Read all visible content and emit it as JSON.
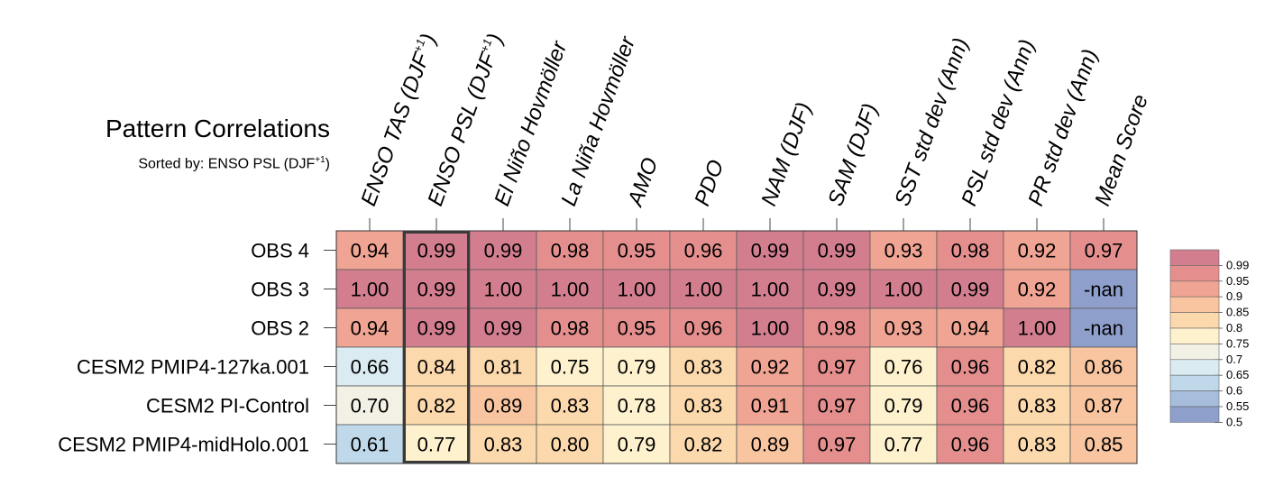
{
  "chart_data": {
    "type": "heatmap",
    "title": "Pattern Correlations",
    "subtitle_prefix": "Sorted by: ENSO PSL (DJF",
    "subtitle_sup": "+1",
    "subtitle_suffix": ")",
    "columns": [
      {
        "label": "ENSO TAS (DJF",
        "sup": "+1",
        "suffix": ")"
      },
      {
        "label": "ENSO PSL (DJF",
        "sup": "+1",
        "suffix": ")"
      },
      {
        "label": "El Niño Hovmöller"
      },
      {
        "label": "La Niña Hovmöller"
      },
      {
        "label": "AMO"
      },
      {
        "label": "PDO"
      },
      {
        "label": "NAM (DJF)"
      },
      {
        "label": "SAM (DJF)"
      },
      {
        "label": "SST std dev (Ann)"
      },
      {
        "label": "PSL std dev (Ann)"
      },
      {
        "label": "PR std dev (Ann)"
      },
      {
        "label": "Mean Score"
      }
    ],
    "rows": [
      "OBS 4",
      "OBS 3",
      "OBS 2",
      "CESM2 PMIP4-127ka.001",
      "CESM2 PI-Control",
      "CESM2 PMIP4-midHolo.001"
    ],
    "values": [
      [
        "0.94",
        "0.99",
        "0.99",
        "0.98",
        "0.95",
        "0.96",
        "0.99",
        "0.99",
        "0.93",
        "0.98",
        "0.92",
        "0.97"
      ],
      [
        "1.00",
        "0.99",
        "1.00",
        "1.00",
        "1.00",
        "1.00",
        "1.00",
        "0.99",
        "1.00",
        "0.99",
        "0.92",
        "-nan"
      ],
      [
        "0.94",
        "0.99",
        "0.99",
        "0.98",
        "0.95",
        "0.96",
        "1.00",
        "0.98",
        "0.93",
        "0.94",
        "1.00",
        "-nan"
      ],
      [
        "0.66",
        "0.84",
        "0.81",
        "0.75",
        "0.79",
        "0.83",
        "0.92",
        "0.97",
        "0.76",
        "0.96",
        "0.82",
        "0.86"
      ],
      [
        "0.70",
        "0.82",
        "0.89",
        "0.83",
        "0.78",
        "0.83",
        "0.91",
        "0.97",
        "0.79",
        "0.96",
        "0.83",
        "0.87"
      ],
      [
        "0.61",
        "0.77",
        "0.83",
        "0.80",
        "0.79",
        "0.82",
        "0.89",
        "0.97",
        "0.77",
        "0.96",
        "0.83",
        "0.85"
      ]
    ],
    "highlighted_column": 1,
    "colorbar": {
      "labels": [
        "0.99",
        "0.95",
        "0.9",
        "0.85",
        "0.8",
        "0.75",
        "0.7",
        "0.65",
        "0.6",
        "0.55",
        "0.5"
      ],
      "colors": [
        "#d27e8f",
        "#e48f8e",
        "#f0a493",
        "#f9c5a0",
        "#fcd9ac",
        "#fef1cd",
        "#f3f1e6",
        "#daebf2",
        "#bfd9ea",
        "#a6bedb",
        "#8f9fcc"
      ]
    }
  }
}
